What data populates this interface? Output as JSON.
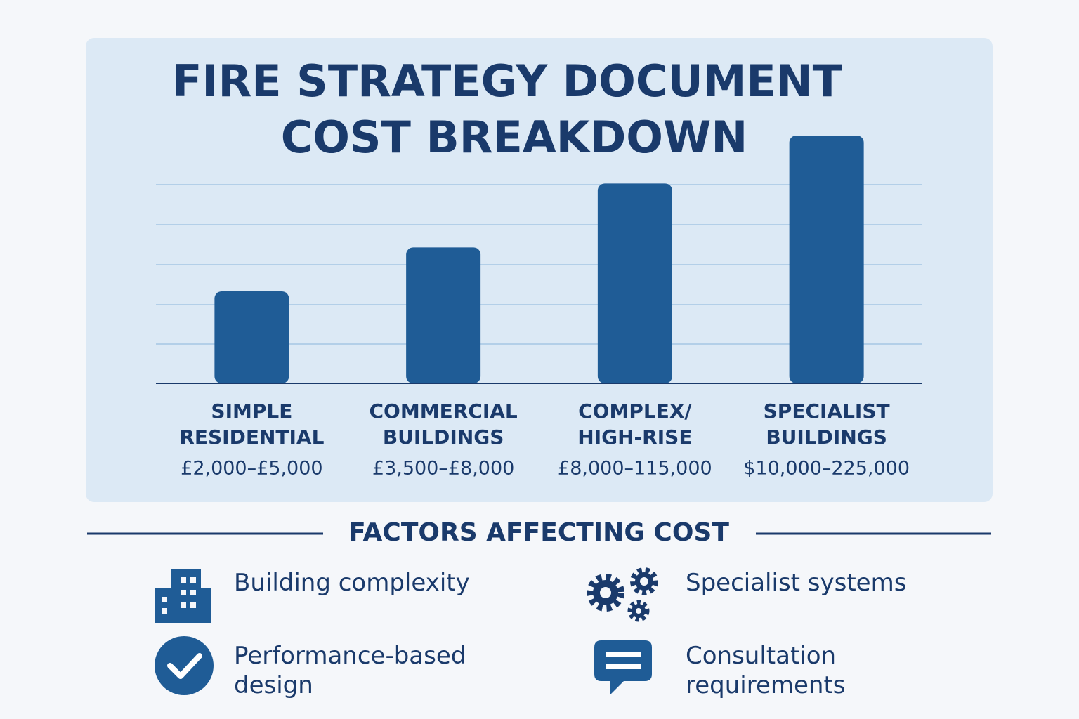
{
  "chart_data": {
    "type": "bar",
    "title": [
      "FIRE STRATEGY DOCUMENT",
      "COST BREAKDOWN"
    ],
    "categories": [
      [
        "SIMPLE",
        "RESIDENTIAL"
      ],
      [
        "COMMERCIAL",
        "BUILDINGS"
      ],
      [
        "COMPLEX/",
        "HIGH-RISE"
      ],
      [
        "SPECIALIST",
        "BUILDINGS"
      ]
    ],
    "values": [
      2.3,
      3.4,
      5,
      6.2
    ],
    "price_ranges": [
      "£2,000–£5,000",
      "£3,500–£8,000",
      "£8,000–115,000",
      "$10,000–225,000"
    ],
    "color": "#1f5c96",
    "ylim": [
      0,
      6.2
    ]
  },
  "factors": {
    "title": "FACTORS AFFECTING COST",
    "items": [
      "Building complexity",
      "Specialist systems",
      "Performance-based design",
      "Consultation requirements"
    ]
  }
}
